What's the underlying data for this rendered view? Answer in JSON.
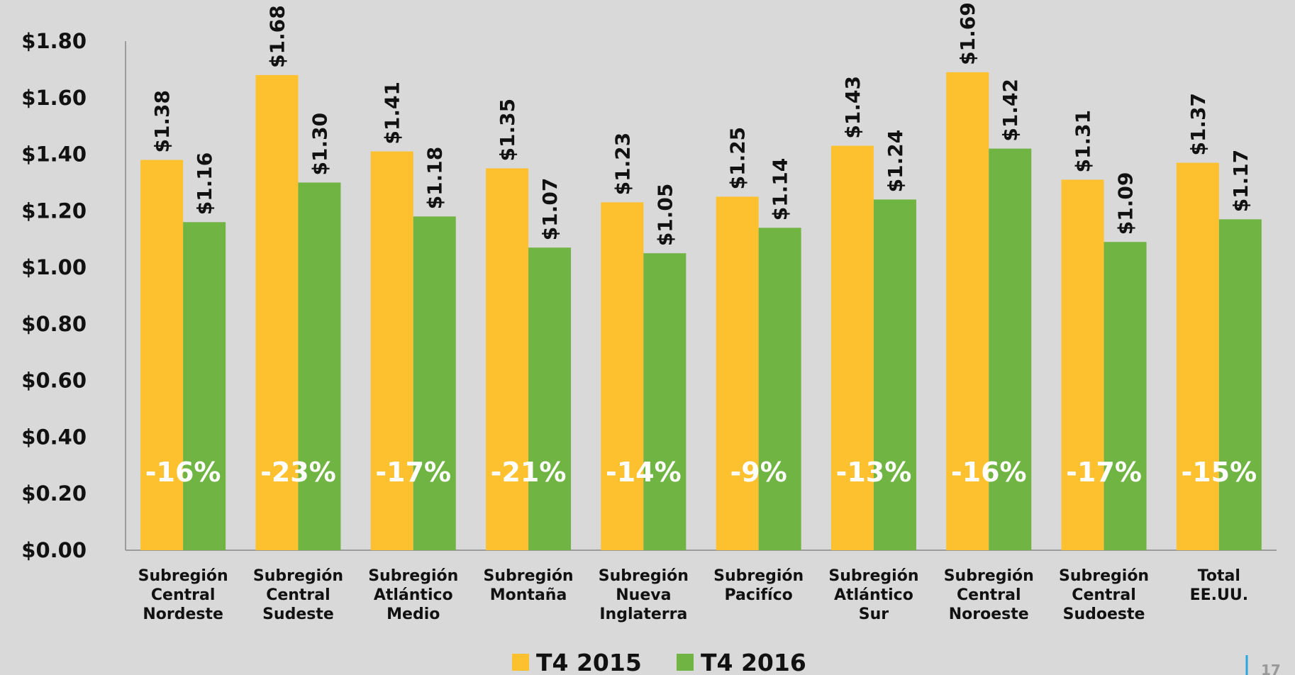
{
  "chart_data": {
    "type": "bar",
    "categories": [
      "Subregión Central Nordeste",
      "Subregión Central Sudeste",
      "Subregión Atlántico Medio",
      "Subregión Montaña",
      "Subregión Nueva Inglaterra",
      "Subregión Pacifíco",
      "Subregión Atlántico Sur",
      "Subregión Central Noroeste",
      "Subregión Central Sudoeste",
      "Total EE.UU."
    ],
    "series": [
      {
        "name": "T4 2015",
        "color": "#fdc02f",
        "values": [
          1.38,
          1.68,
          1.41,
          1.35,
          1.23,
          1.25,
          1.43,
          1.69,
          1.31,
          1.37
        ],
        "value_labels": [
          "$1.38",
          "$1.68",
          "$1.41",
          "$1.35",
          "$1.23",
          "$1.25",
          "$1.43",
          "$1.69",
          "$1.31",
          "$1.37"
        ]
      },
      {
        "name": "T4 2016",
        "color": "#70b444",
        "values": [
          1.16,
          1.3,
          1.18,
          1.07,
          1.05,
          1.14,
          1.24,
          1.42,
          1.09,
          1.17
        ],
        "value_labels": [
          "$1.16",
          "$1.30",
          "$1.18",
          "$1.07",
          "$1.05",
          "$1.14",
          "$1.24",
          "$1.42",
          "$1.09",
          "$1.17"
        ]
      }
    ],
    "annotations": [
      "-16%",
      "-23%",
      "-17%",
      "-21%",
      "-14%",
      "-9%",
      "-13%",
      "-16%",
      "-17%",
      "-15%"
    ],
    "ylim": [
      0,
      1.8
    ],
    "yticks": [
      {
        "value": 0,
        "label": "$0.00"
      },
      {
        "value": 0.2,
        "label": "$0.20"
      },
      {
        "value": 0.4,
        "label": "$0.40"
      },
      {
        "value": 0.6,
        "label": "$0.60"
      },
      {
        "value": 0.8,
        "label": "$0.80"
      },
      {
        "value": 1.0,
        "label": "$1.00"
      },
      {
        "value": 1.2,
        "label": "$1.20"
      },
      {
        "value": 1.4,
        "label": "$1.40"
      },
      {
        "value": 1.6,
        "label": "$1.60"
      },
      {
        "value": 1.8,
        "label": "$1.80"
      }
    ],
    "grid": false,
    "legend": "bottom",
    "page_number": "17"
  }
}
